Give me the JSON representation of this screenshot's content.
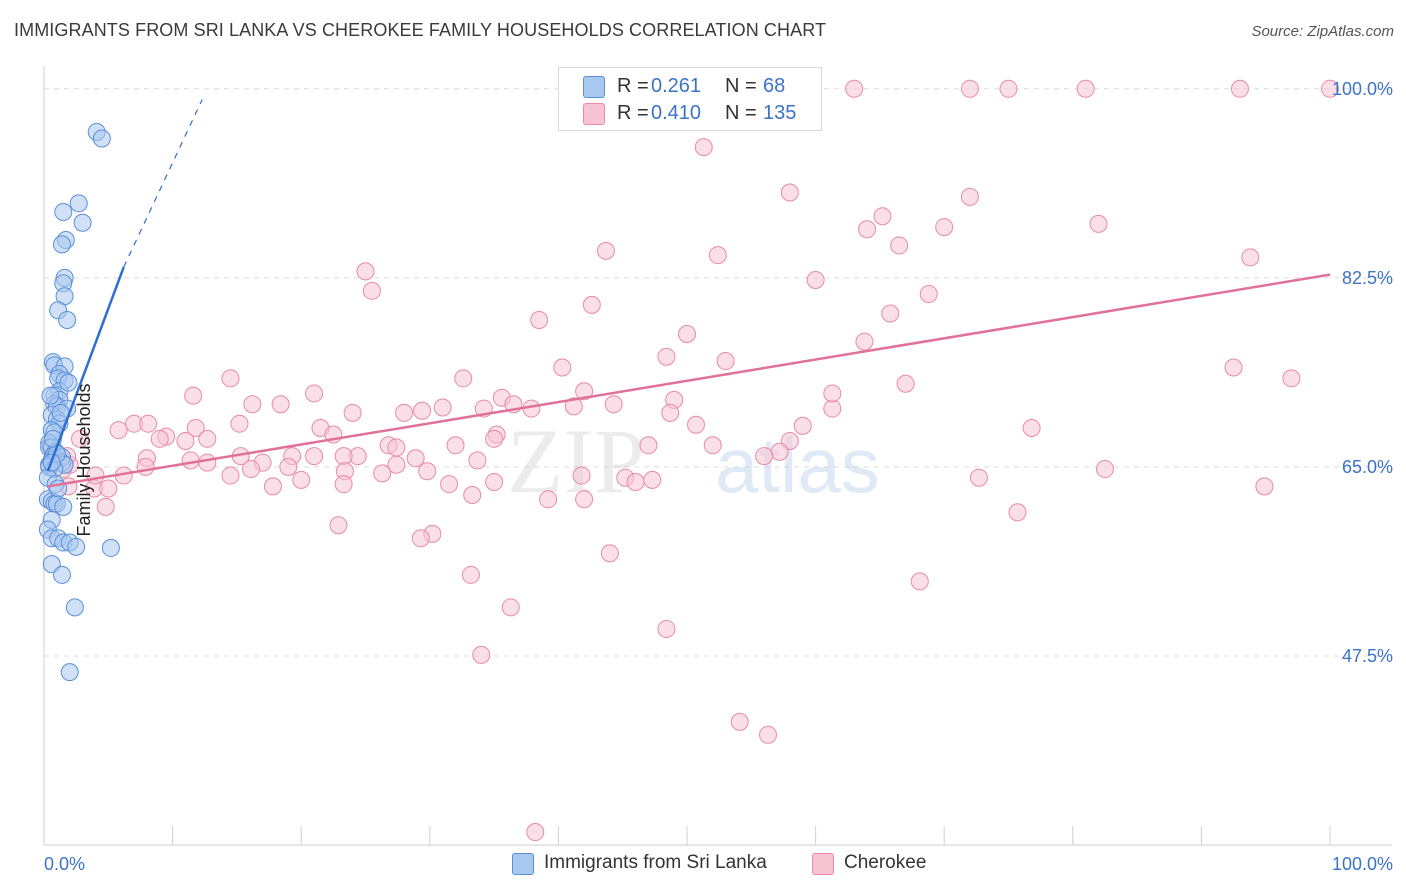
{
  "header": {
    "title": "IMMIGRANTS FROM SRI LANKA VS CHEROKEE FAMILY HOUSEHOLDS CORRELATION CHART",
    "source": "Source: ZipAtlas.com"
  },
  "legend": {
    "rows": [
      {
        "r_label": "R =",
        "r_value": "0.261",
        "n_label": "N =",
        "n_value": "68",
        "color": "#a9c8f0"
      },
      {
        "r_label": "R =",
        "r_value": "0.410",
        "n_label": "N =",
        "n_value": "135",
        "color": "#f7b9cc"
      }
    ]
  },
  "watermark": {
    "zip": "ZIP",
    "atlas": "atlas"
  },
  "colors": {
    "blue_fill": "#a9c8f0",
    "blue_stroke": "#5a8fd8",
    "blue_line": "#2f6fd0",
    "pink_fill": "#f7c4d3",
    "pink_stroke": "#e88aa8",
    "pink_line": "#e0719a",
    "axis_text": "#3b73c6"
  },
  "chart_data": {
    "type": "scatter",
    "title": "IMMIGRANTS FROM SRI LANKA VS CHEROKEE FAMILY HOUSEHOLDS CORRELATION CHART",
    "xlabel": "",
    "ylabel": "Family Households",
    "xlim": [
      0,
      100
    ],
    "ylim": [
      30,
      101
    ],
    "x_tick_labels": [
      "0.0%",
      "100.0%"
    ],
    "y_ticks": [
      47.5,
      65.0,
      82.5,
      100.0
    ],
    "y_tick_labels": [
      "47.5%",
      "65.0%",
      "82.5%",
      "100.0%"
    ],
    "grid": true,
    "legend_position": "top-center",
    "series": [
      {
        "name": "Immigrants from Sri Lanka",
        "color": "#a9c8f0",
        "trend": {
          "x0": 0.3,
          "y0": 64.6,
          "x1": 6.2,
          "y1": 83.5,
          "dash_to_x": 12.3,
          "dash_to_y": 99.0
        },
        "points": [
          [
            4.1,
            96.0
          ],
          [
            4.5,
            95.4
          ],
          [
            2.7,
            89.4
          ],
          [
            3.0,
            87.6
          ],
          [
            1.5,
            88.6
          ],
          [
            1.7,
            86.0
          ],
          [
            1.4,
            85.6
          ],
          [
            1.6,
            82.5
          ],
          [
            1.5,
            82.0
          ],
          [
            1.6,
            80.8
          ],
          [
            1.1,
            79.5
          ],
          [
            1.8,
            78.6
          ],
          [
            0.7,
            74.7
          ],
          [
            0.8,
            74.4
          ],
          [
            1.6,
            74.3
          ],
          [
            1.2,
            73.6
          ],
          [
            1.1,
            73.2
          ],
          [
            1.6,
            73.0
          ],
          [
            1.2,
            72.0
          ],
          [
            0.8,
            71.6
          ],
          [
            1.2,
            71.2
          ],
          [
            0.8,
            70.8
          ],
          [
            1.0,
            70.6
          ],
          [
            1.8,
            70.4
          ],
          [
            0.6,
            69.8
          ],
          [
            1.0,
            69.4
          ],
          [
            1.2,
            69.0
          ],
          [
            0.6,
            68.4
          ],
          [
            0.8,
            68.2
          ],
          [
            0.4,
            67.2
          ],
          [
            0.4,
            66.8
          ],
          [
            0.6,
            66.8
          ],
          [
            0.9,
            66.4
          ],
          [
            0.7,
            66.0
          ],
          [
            0.9,
            65.8
          ],
          [
            1.4,
            65.9
          ],
          [
            0.6,
            65.6
          ],
          [
            0.4,
            65.2
          ],
          [
            1.4,
            65.4
          ],
          [
            1.6,
            65.2
          ],
          [
            0.4,
            65.0
          ],
          [
            0.8,
            64.8
          ],
          [
            0.3,
            62.0
          ],
          [
            0.6,
            61.8
          ],
          [
            0.8,
            61.6
          ],
          [
            1.0,
            61.6
          ],
          [
            1.5,
            61.3
          ],
          [
            0.6,
            60.1
          ],
          [
            0.3,
            59.2
          ],
          [
            0.6,
            58.4
          ],
          [
            1.1,
            58.4
          ],
          [
            1.5,
            58.0
          ],
          [
            2.0,
            58.0
          ],
          [
            2.5,
            57.6
          ],
          [
            5.2,
            57.5
          ],
          [
            0.6,
            56.0
          ],
          [
            1.4,
            55.0
          ],
          [
            2.4,
            52.0
          ],
          [
            2.0,
            46.0
          ],
          [
            0.3,
            64.0
          ],
          [
            0.9,
            63.4
          ],
          [
            1.1,
            63.0
          ],
          [
            1.3,
            70.0
          ],
          [
            0.5,
            71.6
          ],
          [
            1.9,
            72.8
          ],
          [
            0.7,
            67.6
          ],
          [
            1.0,
            66.2
          ],
          [
            0.6,
            65.4
          ]
        ]
      },
      {
        "name": "Cherokee",
        "color": "#f7b9cc",
        "trend": {
          "x0": 0.3,
          "y0": 63.2,
          "x1": 100.0,
          "y1": 82.8
        },
        "points": [
          [
            53.0,
            100.0
          ],
          [
            63.0,
            100.0
          ],
          [
            72.0,
            100.0
          ],
          [
            93.0,
            100.0
          ],
          [
            75.0,
            100.0
          ],
          [
            81.0,
            100.0
          ],
          [
            100.0,
            100.0
          ],
          [
            51.3,
            94.6
          ],
          [
            58.0,
            90.4
          ],
          [
            72.0,
            90.0
          ],
          [
            65.2,
            88.2
          ],
          [
            82.0,
            87.5
          ],
          [
            64.0,
            87.0
          ],
          [
            70.0,
            87.2
          ],
          [
            66.5,
            85.5
          ],
          [
            43.7,
            85.0
          ],
          [
            52.4,
            84.6
          ],
          [
            93.8,
            84.4
          ],
          [
            25.0,
            83.1
          ],
          [
            60.0,
            82.3
          ],
          [
            25.5,
            81.3
          ],
          [
            68.8,
            81.0
          ],
          [
            42.6,
            80.0
          ],
          [
            65.8,
            79.2
          ],
          [
            38.5,
            78.6
          ],
          [
            50.0,
            77.3
          ],
          [
            63.8,
            76.6
          ],
          [
            48.4,
            75.2
          ],
          [
            53.0,
            74.8
          ],
          [
            40.3,
            74.2
          ],
          [
            92.5,
            74.2
          ],
          [
            97.0,
            73.2
          ],
          [
            32.6,
            73.2
          ],
          [
            14.5,
            73.2
          ],
          [
            67.0,
            72.7
          ],
          [
            42.0,
            72.0
          ],
          [
            21.0,
            71.8
          ],
          [
            11.6,
            71.6
          ],
          [
            35.6,
            71.4
          ],
          [
            49.0,
            71.2
          ],
          [
            18.4,
            70.8
          ],
          [
            16.2,
            70.8
          ],
          [
            36.5,
            70.8
          ],
          [
            41.2,
            70.6
          ],
          [
            61.3,
            70.4
          ],
          [
            48.7,
            70.0
          ],
          [
            37.9,
            70.4
          ],
          [
            31.0,
            70.5
          ],
          [
            29.4,
            70.2
          ],
          [
            24.0,
            70.0
          ],
          [
            28.0,
            70.0
          ],
          [
            34.2,
            70.4
          ],
          [
            15.2,
            69.0
          ],
          [
            7.0,
            69.0
          ],
          [
            8.1,
            69.0
          ],
          [
            50.7,
            68.9
          ],
          [
            59.0,
            68.8
          ],
          [
            76.8,
            68.6
          ],
          [
            21.5,
            68.6
          ],
          [
            5.8,
            68.4
          ],
          [
            11.8,
            68.6
          ],
          [
            22.5,
            68.0
          ],
          [
            35.2,
            68.0
          ],
          [
            9.5,
            67.8
          ],
          [
            11.0,
            67.4
          ],
          [
            9.0,
            67.6
          ],
          [
            12.7,
            67.6
          ],
          [
            2.8,
            67.6
          ],
          [
            32.0,
            67.0
          ],
          [
            35.0,
            67.6
          ],
          [
            26.8,
            67.0
          ],
          [
            47.0,
            67.0
          ],
          [
            52.0,
            67.0
          ],
          [
            58.0,
            67.4
          ],
          [
            57.2,
            66.4
          ],
          [
            56.0,
            66.0
          ],
          [
            27.4,
            66.8
          ],
          [
            19.3,
            66.0
          ],
          [
            15.3,
            66.0
          ],
          [
            21.0,
            66.0
          ],
          [
            24.4,
            66.0
          ],
          [
            23.3,
            66.0
          ],
          [
            33.7,
            65.6
          ],
          [
            28.9,
            65.8
          ],
          [
            12.7,
            65.4
          ],
          [
            11.4,
            65.6
          ],
          [
            8.0,
            65.8
          ],
          [
            27.4,
            65.2
          ],
          [
            19.0,
            65.0
          ],
          [
            17.0,
            65.4
          ],
          [
            16.1,
            64.8
          ],
          [
            14.5,
            64.2
          ],
          [
            26.3,
            64.4
          ],
          [
            29.8,
            64.6
          ],
          [
            23.4,
            64.6
          ],
          [
            41.8,
            64.2
          ],
          [
            45.2,
            64.0
          ],
          [
            47.3,
            63.8
          ],
          [
            46.0,
            63.6
          ],
          [
            72.7,
            64.0
          ],
          [
            82.5,
            64.8
          ],
          [
            35.0,
            63.6
          ],
          [
            31.5,
            63.4
          ],
          [
            20.0,
            63.8
          ],
          [
            17.8,
            63.2
          ],
          [
            3.9,
            63.0
          ],
          [
            1.9,
            63.2
          ],
          [
            5.0,
            63.0
          ],
          [
            4.0,
            64.2
          ],
          [
            6.2,
            64.2
          ],
          [
            7.9,
            65.0
          ],
          [
            1.5,
            64.8
          ],
          [
            2.0,
            65.2
          ],
          [
            1.8,
            66.0
          ],
          [
            94.9,
            63.2
          ],
          [
            23.3,
            63.4
          ],
          [
            33.3,
            62.4
          ],
          [
            39.2,
            62.0
          ],
          [
            42.0,
            62.0
          ],
          [
            4.8,
            61.3
          ],
          [
            75.7,
            60.8
          ],
          [
            22.9,
            59.6
          ],
          [
            30.2,
            58.8
          ],
          [
            29.3,
            58.4
          ],
          [
            44.0,
            57.0
          ],
          [
            33.2,
            55.0
          ],
          [
            68.1,
            54.4
          ],
          [
            36.3,
            52.0
          ],
          [
            48.4,
            50.0
          ],
          [
            34.0,
            47.6
          ],
          [
            54.1,
            41.4
          ],
          [
            56.3,
            40.2
          ],
          [
            38.2,
            31.2
          ],
          [
            61.3,
            71.8
          ],
          [
            44.3,
            70.8
          ]
        ]
      }
    ]
  }
}
